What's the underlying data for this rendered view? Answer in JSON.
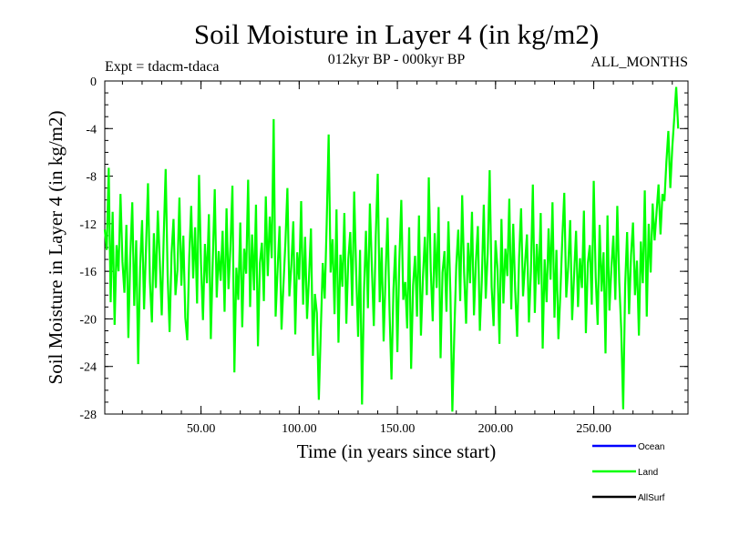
{
  "chart_data": {
    "type": "line",
    "title": "Soil Moisture in Layer 4 (in kg/m2)",
    "experiment": "Expt = tdacm-tdaca",
    "period": "012kyr BP - 000kyr BP",
    "season": "ALL_MONTHS",
    "xlabel": "Time (in years since start)",
    "ylabel": "Soil Moisture in Layer 4 (in kg/m2)",
    "xlim": [
      1,
      298
    ],
    "ylim": [
      -28,
      0
    ],
    "xticks": [
      50,
      100,
      150,
      200,
      250
    ],
    "xtick_labels": [
      "50.00",
      "100.00",
      "150.00",
      "200.00",
      "250.00"
    ],
    "yticks": [
      0,
      -4,
      -8,
      -12,
      -16,
      -20,
      -24,
      -28
    ],
    "ytick_labels": [
      "0",
      "-4",
      "-8",
      "-12",
      "-16",
      "-20",
      "-24",
      "-28"
    ],
    "legend_position": "bottom-right",
    "colors": {
      "Ocean": "#0000ff",
      "Land": "#00ff00",
      "AllSurf": "#000000"
    },
    "series": [
      {
        "name": "Ocean",
        "values": []
      },
      {
        "name": "Land",
        "x_start": 1,
        "x_step": 1,
        "values": [
          -12.5,
          -14.2,
          -7.3,
          -18.6,
          -11.0,
          -20.5,
          -13.8,
          -16.0,
          -9.5,
          -15.2,
          -17.8,
          -12.1,
          -21.6,
          -14.7,
          -10.2,
          -18.9,
          -13.4,
          -23.8,
          -15.6,
          -11.7,
          -19.2,
          -14.0,
          -8.6,
          -16.9,
          -20.3,
          -12.8,
          -17.4,
          -10.9,
          -15.1,
          -19.7,
          -13.2,
          -7.4,
          -16.3,
          -21.1,
          -14.5,
          -11.6,
          -18.0,
          -15.9,
          -9.8,
          -17.2,
          -13.0,
          -19.9,
          -21.8,
          -14.8,
          -10.5,
          -16.6,
          -12.3,
          -18.7,
          -7.9,
          -15.4,
          -20.1,
          -13.7,
          -17.0,
          -11.2,
          -21.7,
          -15.0,
          -9.1,
          -18.2,
          -14.3,
          -16.8,
          -12.6,
          -19.4,
          -10.7,
          -17.5,
          -13.9,
          -8.8,
          -24.5,
          -15.7,
          -18.4,
          -11.9,
          -20.7,
          -14.1,
          -16.2,
          -8.3,
          -19.0,
          -12.9,
          -17.6,
          -10.4,
          -22.3,
          -15.3,
          -13.6,
          -18.5,
          -9.7,
          -16.4,
          -11.4,
          -14.9,
          -3.2,
          -19.8,
          -15.8,
          -12.2,
          -20.9,
          -17.1,
          -13.5,
          -9.0,
          -18.1,
          -15.5,
          -11.8,
          -21.3,
          -14.4,
          -16.7,
          -10.1,
          -18.8,
          -13.1,
          -20.0,
          -16.5,
          -12.4,
          -23.1,
          -17.9,
          -19.5,
          -26.8,
          -21.0,
          -15.3,
          -18.3,
          -12.0,
          -4.5,
          -16.1,
          -13.3,
          -19.6,
          -10.8,
          -22.0,
          -14.6,
          -17.3,
          -11.1,
          -20.4,
          -15.0,
          -12.7,
          -18.9,
          -9.3,
          -16.0,
          -21.5,
          -14.2,
          -27.2,
          -17.7,
          -12.6,
          -19.1,
          -10.3,
          -15.6,
          -20.6,
          -13.0,
          -7.8,
          -18.6,
          -14.0,
          -21.9,
          -16.3,
          -11.5,
          -19.3,
          -25.1,
          -17.5,
          -13.8,
          -22.8,
          -15.1,
          -10.0,
          -18.4,
          -16.9,
          -20.8,
          -12.3,
          -24.2,
          -17.2,
          -14.7,
          -19.8,
          -11.3,
          -21.4,
          -16.6,
          -13.1,
          -18.0,
          -8.1,
          -15.9,
          -20.2,
          -12.8,
          -17.4,
          -10.6,
          -23.3,
          -16.1,
          -14.3,
          -19.4,
          -11.8,
          -17.8,
          -27.8,
          -21.2,
          -15.5,
          -12.5,
          -18.5,
          -9.6,
          -16.2,
          -20.4,
          -13.6,
          -17.0,
          -11.0,
          -19.7,
          -15.2,
          -12.2,
          -21.0,
          -16.8,
          -10.4,
          -18.3,
          -14.5,
          -7.5,
          -17.3,
          -20.6,
          -13.4,
          -15.8,
          -22.1,
          -11.6,
          -18.7,
          -14.1,
          -16.4,
          -9.9,
          -19.2,
          -12.0,
          -17.6,
          -21.5,
          -14.8,
          -10.7,
          -18.1,
          -15.4,
          -12.9,
          -20.3,
          -16.0,
          -8.7,
          -19.5,
          -13.7,
          -17.1,
          -11.1,
          -22.5,
          -15.0,
          -18.6,
          -12.4,
          -16.7,
          -10.2,
          -19.9,
          -14.2,
          -21.7,
          -17.9,
          -13.2,
          -9.4,
          -18.2,
          -15.6,
          -11.7,
          -20.1,
          -16.3,
          -12.6,
          -19.0,
          -14.9,
          -17.4,
          -10.9,
          -21.2,
          -15.3,
          -13.8,
          -18.8,
          -8.4,
          -16.5,
          -20.5,
          -12.1,
          -17.7,
          -14.4,
          -22.9,
          -11.3,
          -19.3,
          -15.7,
          -13.0,
          -18.4,
          -10.5,
          -16.9,
          -20.9,
          -27.6,
          -17.2,
          -12.7,
          -19.6,
          -14.6,
          -11.9,
          -18.0,
          -15.1,
          -21.4,
          -13.5,
          -17.0,
          -9.2,
          -19.8,
          -12.0,
          -16.1,
          -10.3,
          -13.4,
          -11.0,
          -8.7,
          -12.9,
          -9.5,
          -10.1,
          -6.8,
          -4.2,
          -9.0,
          -5.6,
          -3.1,
          -0.5,
          -4.0
        ]
      },
      {
        "name": "AllSurf",
        "values": []
      }
    ]
  }
}
